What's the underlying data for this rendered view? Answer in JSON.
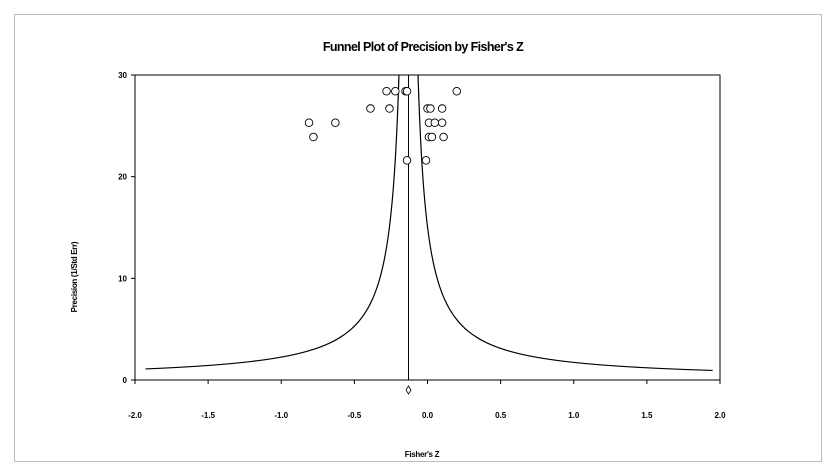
{
  "chart_data": {
    "type": "scatter",
    "title": "Funnel Plot of Precision by Fisher's Z",
    "xlabel": "Fisher's Z",
    "ylabel": "Precision (1/Std Err)",
    "xlim": [
      -2.0,
      2.0
    ],
    "ylim": [
      0,
      30
    ],
    "x_ticks": [
      "-2.0",
      "-1.5",
      "-1.0",
      "-0.5",
      "0.0",
      "0.5",
      "1.0",
      "1.5",
      "2.0"
    ],
    "y_ticks": [
      "0",
      "10",
      "20",
      "30"
    ],
    "grid": false,
    "legend": "none",
    "summary_effect": -0.13,
    "funnel_confidence_z": 1.96,
    "points": [
      {
        "x": -0.28,
        "y": 28.4
      },
      {
        "x": -0.22,
        "y": 28.4
      },
      {
        "x": -0.15,
        "y": 28.4
      },
      {
        "x": -0.14,
        "y": 28.4
      },
      {
        "x": 0.2,
        "y": 28.4
      },
      {
        "x": -0.39,
        "y": 26.7
      },
      {
        "x": -0.26,
        "y": 26.7
      },
      {
        "x": 0.0,
        "y": 26.7
      },
      {
        "x": 0.02,
        "y": 26.7
      },
      {
        "x": 0.1,
        "y": 26.7
      },
      {
        "x": -0.81,
        "y": 25.3
      },
      {
        "x": -0.63,
        "y": 25.3
      },
      {
        "x": 0.01,
        "y": 25.3
      },
      {
        "x": 0.05,
        "y": 25.3
      },
      {
        "x": 0.1,
        "y": 25.3
      },
      {
        "x": -0.78,
        "y": 23.9
      },
      {
        "x": 0.01,
        "y": 23.9
      },
      {
        "x": 0.03,
        "y": 23.9
      },
      {
        "x": 0.11,
        "y": 23.9
      },
      {
        "x": -0.14,
        "y": 21.6
      },
      {
        "x": -0.01,
        "y": 21.6
      }
    ]
  }
}
